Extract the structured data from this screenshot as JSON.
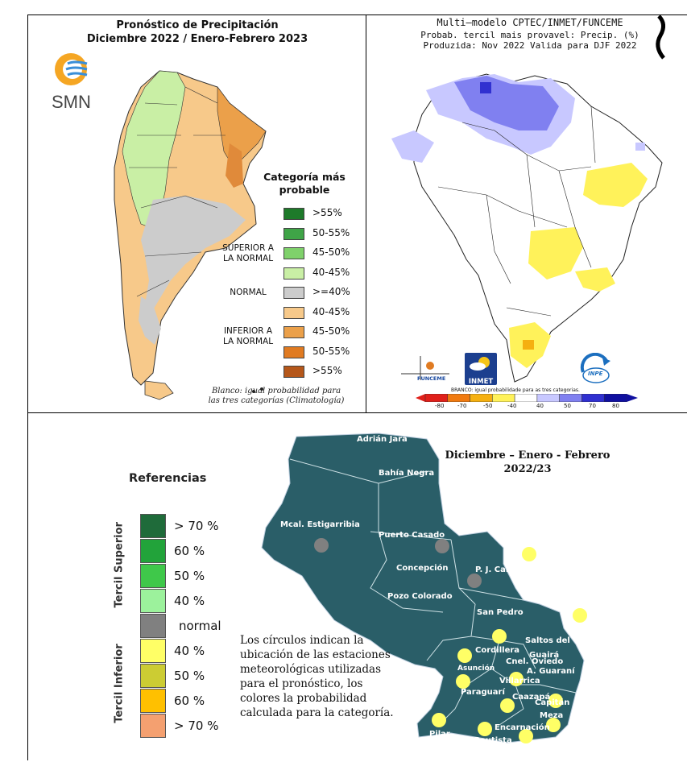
{
  "argentina": {
    "title_line1": "Pronóstico de Precipitación",
    "title_line2": "Diciembre 2022 / Enero-Febrero 2023",
    "logo_text": "SMN",
    "legend_title_line1": "Categoría más",
    "legend_title_line2": "probable",
    "groups": {
      "superior": [
        "SUPERIOR A",
        "LA NORMAL"
      ],
      "normal": "NORMAL",
      "inferior": [
        "INFERIOR A",
        "LA NORMAL"
      ]
    },
    "legend": [
      {
        "label": ">55%",
        "color": "#1e7a2a"
      },
      {
        "label": "50-55%",
        "color": "#3fa447"
      },
      {
        "label": "45-50%",
        "color": "#7fd16b"
      },
      {
        "label": "40-45%",
        "color": "#c9efa5"
      },
      {
        "label": ">=40%",
        "color": "#cccccc"
      },
      {
        "label": "40-45%",
        "color": "#f7c98a"
      },
      {
        "label": "45-50%",
        "color": "#eba04a"
      },
      {
        "label": "50-55%",
        "color": "#e07b22"
      },
      {
        "label": ">55%",
        "color": "#b5571a"
      }
    ],
    "note_line1": "Blanco: igual probabilidad para",
    "note_line2": "las tres categorías (Climatología)"
  },
  "brazil": {
    "title_line1": "Multi—modelo CPTEC/INMET/FUNCEME",
    "title_line2": "Probab. tercil mais provavel: Precip. (%)",
    "title_line3": "Produzida: Nov 2022   Valida para DJF 2022",
    "logos": [
      "FUNCEME",
      "INMET",
      "INPE"
    ],
    "colorbar_caption": "BRANCO: igual probabilidade para as tres categorias.",
    "colorbar_ticks": [
      "-80",
      "-70",
      "-50",
      "-40",
      "40",
      "50",
      "70",
      "80"
    ],
    "colorbar_colors": [
      "#e0201a",
      "#f07a10",
      "#f5b010",
      "#fff25a",
      "#ffffff",
      "#c8c8ff",
      "#8080f0",
      "#3030d0",
      "#1010a0"
    ]
  },
  "paraguay": {
    "references_title": "Referencias",
    "tercil_superior": "Tercil Superior",
    "tercil_inferior": "Tercil Inferior",
    "scale": [
      {
        "label": "> 70 %",
        "color": "#1f6b3a"
      },
      {
        "label": "60 %",
        "color": "#22a33a"
      },
      {
        "label": "50 %",
        "color": "#3fc84a"
      },
      {
        "label": "40 %",
        "color": "#9cf29c"
      },
      {
        "label": "normal",
        "color": "#808080"
      },
      {
        "label": "40  %",
        "color": "#ffff66"
      },
      {
        "label": "50  %",
        "color": "#cccc33"
      },
      {
        "label": "60  %",
        "color": "#ffc000"
      },
      {
        "label": "> 70 %",
        "color": "#f4a070"
      }
    ],
    "title_line1": "Diciembre – Enero - Febrero",
    "title_line2": "2022/23",
    "note": [
      "Los círculos indican la",
      "ubicación de las estaciones",
      "meteorológicas utilizadas",
      "para el pronóstico, los",
      "colores la probabilidad",
      "calculada para la categoría."
    ],
    "map_color": "#2a5e68",
    "departments": [
      "Adrián Jara",
      "Bahía Negra",
      "Mcal. Estigarribia",
      "Puerto Casado",
      "Concepción",
      "P. J. Caballero",
      "Pozo Colorado",
      "San Pedro",
      "Saltos del",
      "Guairá",
      "Cordillera",
      "Cnel. Oviedo",
      "Asunción",
      "A. Guaraní",
      "Villarrica",
      "Paraguarí",
      "Caazapá",
      "Capitán",
      "Meza",
      "Encarnación",
      "Pilar",
      "S.J.Bautista"
    ]
  }
}
